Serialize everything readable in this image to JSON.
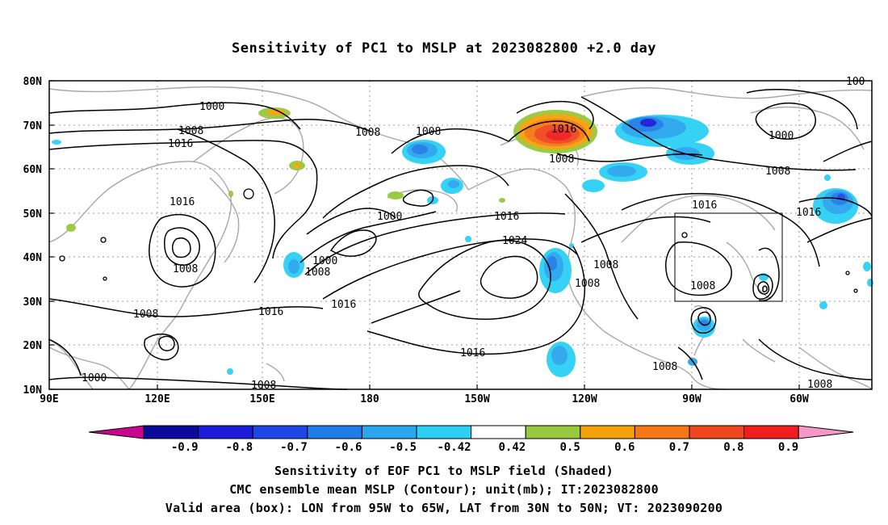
{
  "title": "Sensitivity of PC1 to MSLP at 2023082800 +2.0 day",
  "lat_labels": [
    "80N",
    "70N",
    "60N",
    "50N",
    "40N",
    "30N",
    "20N",
    "10N"
  ],
  "lon_labels": [
    "90E",
    "120E",
    "150E",
    "180",
    "150W",
    "120W",
    "90W",
    "60W"
  ],
  "contour_labels": [
    "1000",
    "1008",
    "1016",
    "1008",
    "1016",
    "1008",
    "1008",
    "1000",
    "1016",
    "1008",
    "1000",
    "1008",
    "1000",
    "1016",
    "1008",
    "1016",
    "1024",
    "1008",
    "1008",
    "1016",
    "1008",
    "1016",
    "1008",
    "1016",
    "1008",
    "1008",
    "1000",
    "1008",
    "1016",
    "1008",
    "100"
  ],
  "colorbar": {
    "labels": [
      "-0.9",
      "-0.8",
      "-0.7",
      "-0.6",
      "-0.5",
      "-0.42",
      "0.42",
      "0.5",
      "0.6",
      "0.7",
      "0.8",
      "0.9"
    ],
    "colors": {
      "below_min": "#c8088c",
      "bins": [
        "#0a0a9a",
        "#1a1ad8",
        "#1e46e6",
        "#1f7de8",
        "#2aa6ee",
        "#2cd0f5",
        "#ffffff",
        "#98c83c",
        "#f5a20a",
        "#f57814",
        "#f0461e",
        "#f01e1e"
      ],
      "above_max": "#f598c8"
    }
  },
  "valid_box": {
    "lon_range": "95W to 65W",
    "lat_range": "30N to 50N"
  },
  "footer": {
    "line1": "Sensitivity of EOF PC1 to MSLP field (Shaded)",
    "line2": "CMC ensemble mean MSLP (Contour); unit(mb); IT:2023082800",
    "line3": "Valid area (box): LON from 95W to 65W, LAT from 30N to 50N; VT: 2023090200"
  }
}
